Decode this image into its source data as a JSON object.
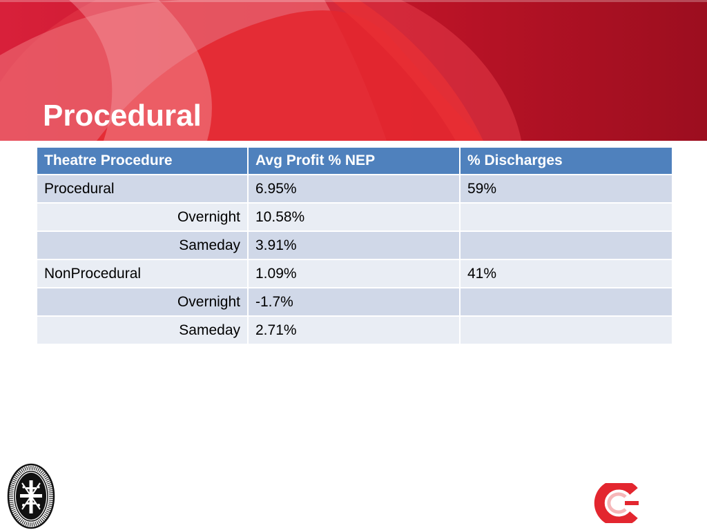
{
  "slide": {
    "title": "Procedural",
    "colors": {
      "banner_dark": "#a10f22",
      "banner_bright": "#e0202c",
      "banner_light": "#f08a8c",
      "table_header": "#4f81bd",
      "row_band_a": "#d0d8e8",
      "row_band_b": "#e9edf4"
    }
  },
  "table": {
    "headers": [
      "Theatre Procedure",
      "Avg Profit % NEP",
      "% Discharges"
    ],
    "rows": [
      {
        "procedure": "Procedural",
        "avg_profit": "6.95%",
        "discharges": "59%",
        "sub": false
      },
      {
        "procedure": "Overnight",
        "avg_profit": "10.58%",
        "discharges": "",
        "sub": true
      },
      {
        "procedure": "Sameday",
        "avg_profit": "3.91%",
        "discharges": "",
        "sub": true
      },
      {
        "procedure": "NonProcedural",
        "avg_profit": "1.09%",
        "discharges": "41%",
        "sub": false
      },
      {
        "procedure": "Overnight",
        "avg_profit": "-1.7%",
        "discharges": "",
        "sub": true
      },
      {
        "procedure": "Sameday",
        "avg_profit": "2.71%",
        "discharges": "",
        "sub": true
      }
    ]
  },
  "logos": {
    "seal_icon": "hospital-seal-icon",
    "seal_text": "ST ANDREW'S HOSPITAL INCORPORATED ADELAIDE",
    "brand_icon": "red-c-logo-icon"
  }
}
